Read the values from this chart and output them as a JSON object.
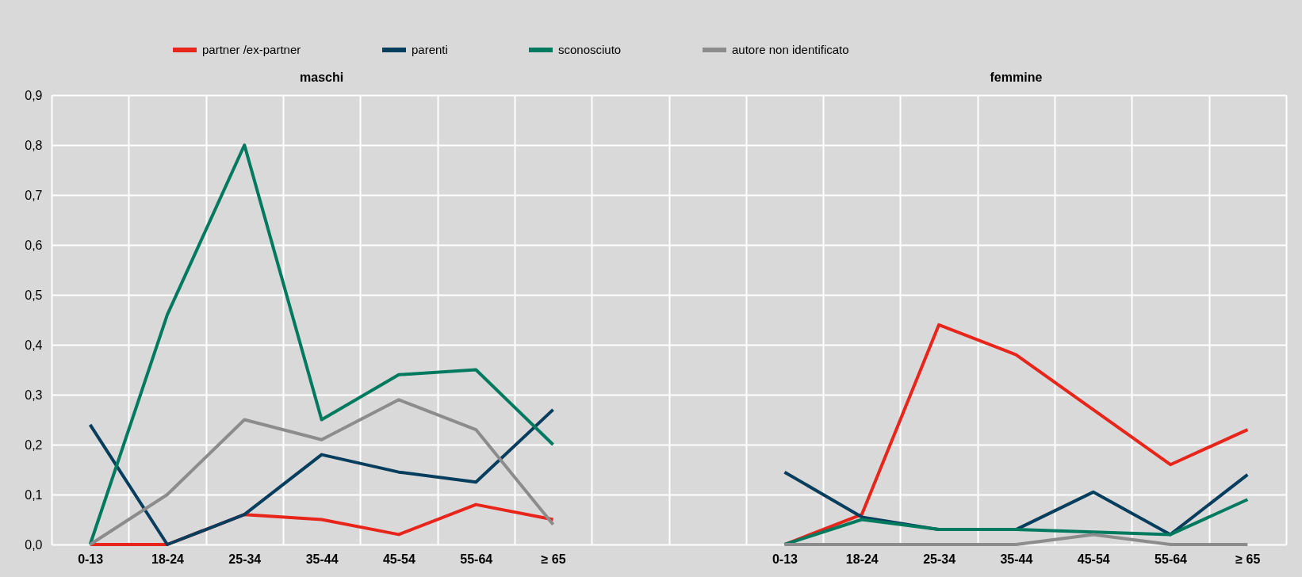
{
  "chart_data": {
    "type": "line",
    "annotations": [
      "maschi",
      "femmine"
    ],
    "categories": [
      "0-13",
      "18-24",
      "25-34",
      "35-44",
      "45-54",
      "55-64",
      "≥ 65",
      null,
      null,
      "0-13",
      "18-24",
      "25-34",
      "35-44",
      "45-54",
      "55-64",
      "≥ 65"
    ],
    "series": [
      {
        "name": "partner /ex-partner",
        "color": "#e8251b",
        "values": [
          0,
          0,
          0.06,
          0.05,
          0.02,
          0.08,
          0.05,
          null,
          null,
          0,
          0.06,
          0.44,
          0.38,
          0.27,
          0.16,
          0.23
        ]
      },
      {
        "name": "parenti",
        "color": "#073e5e",
        "values": [
          0.24,
          0,
          0.06,
          0.18,
          0.145,
          0.125,
          0.27,
          null,
          null,
          0.145,
          0.055,
          0.03,
          0.03,
          0.105,
          0.02,
          0.14
        ]
      },
      {
        "name": "sconosciuto",
        "color": "#007a5e",
        "values": [
          0,
          0.46,
          0.8,
          0.25,
          0.34,
          0.35,
          0.2,
          null,
          null,
          0,
          0.05,
          0.03,
          0.03,
          0.025,
          0.02,
          0.09
        ]
      },
      {
        "name": "autore non identificato",
        "color": "#8c8c8c",
        "values": [
          0,
          0.1,
          0.25,
          0.21,
          0.29,
          0.23,
          0.04,
          null,
          null,
          0,
          0,
          0,
          0,
          0.02,
          0,
          0
        ]
      }
    ],
    "ylim": [
      0,
      0.9
    ],
    "yticks": [
      {
        "value": 0,
        "label": "0,0"
      },
      {
        "value": 0.1,
        "label": "0,1"
      },
      {
        "value": 0.2,
        "label": "0,2"
      },
      {
        "value": 0.3,
        "label": "0,3"
      },
      {
        "value": 0.4,
        "label": "0,4"
      },
      {
        "value": 0.5,
        "label": "0,5"
      },
      {
        "value": 0.6,
        "label": "0,6"
      },
      {
        "value": 0.7,
        "label": "0,7"
      },
      {
        "value": 0.8,
        "label": "0,8"
      },
      {
        "value": 0.9,
        "label": "0,9"
      }
    ],
    "grid": true,
    "legend": "top",
    "marker": "none",
    "line_style": "solid"
  }
}
